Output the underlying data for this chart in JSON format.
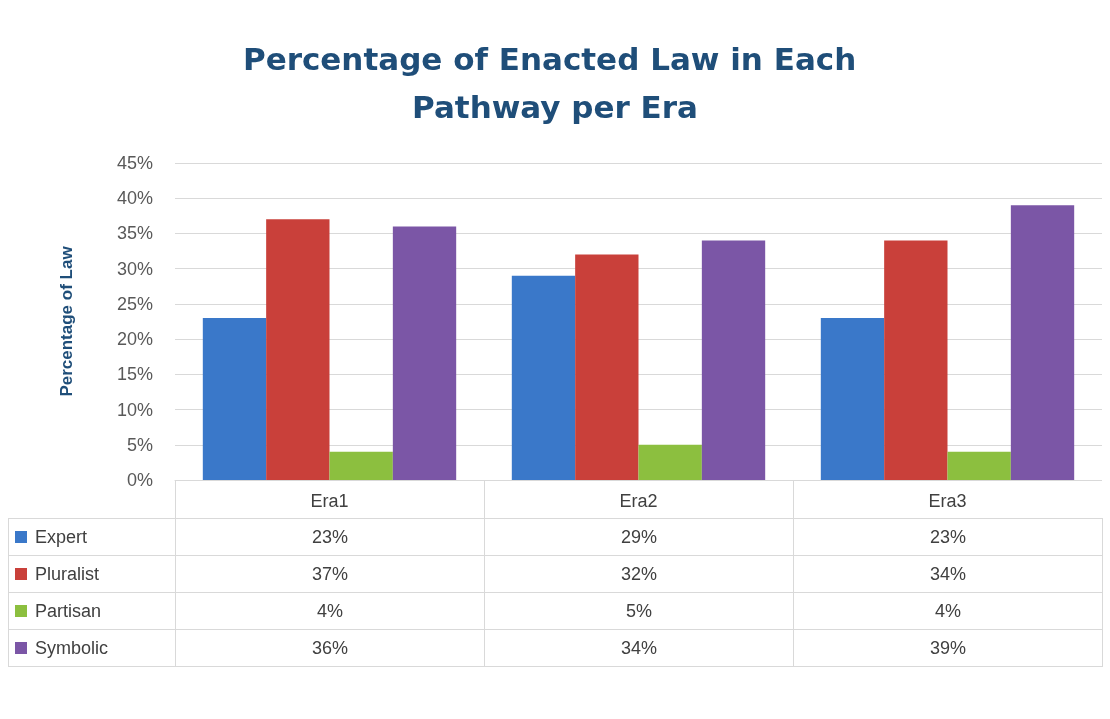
{
  "chart_data": {
    "type": "bar",
    "title": "Percentage of Enacted Law in Each Pathway per Era",
    "ylabel": "Percentage of Law",
    "categories": [
      "Era1",
      "Era2",
      "Era3"
    ],
    "series": [
      {
        "name": "Expert",
        "color": "#3a78c9",
        "values": [
          23,
          29,
          23
        ],
        "value_labels": [
          "23%",
          "29%",
          "23%"
        ]
      },
      {
        "name": "Pluralist",
        "color": "#c9403a",
        "values": [
          37,
          32,
          34
        ],
        "value_labels": [
          "37%",
          "32%",
          "34%"
        ]
      },
      {
        "name": "Partisan",
        "color": "#8cbf3f",
        "values": [
          4,
          5,
          4
        ],
        "value_labels": [
          "4%",
          "5%",
          "4%"
        ]
      },
      {
        "name": "Symbolic",
        "color": "#7b56a6",
        "values": [
          36,
          34,
          39
        ],
        "value_labels": [
          "36%",
          "34%",
          "39%"
        ]
      }
    ],
    "ylim": [
      0,
      45
    ],
    "yticks": [
      {
        "value": 0,
        "label": "0%"
      },
      {
        "value": 5,
        "label": "5%"
      },
      {
        "value": 10,
        "label": "10%"
      },
      {
        "value": 15,
        "label": "15%"
      },
      {
        "value": 20,
        "label": "20%"
      },
      {
        "value": 25,
        "label": "25%"
      },
      {
        "value": 30,
        "label": "30%"
      },
      {
        "value": 35,
        "label": "35%"
      },
      {
        "value": 40,
        "label": "40%"
      },
      {
        "value": 45,
        "label": "45%"
      }
    ],
    "grid": "y",
    "legend": "bottom"
  }
}
